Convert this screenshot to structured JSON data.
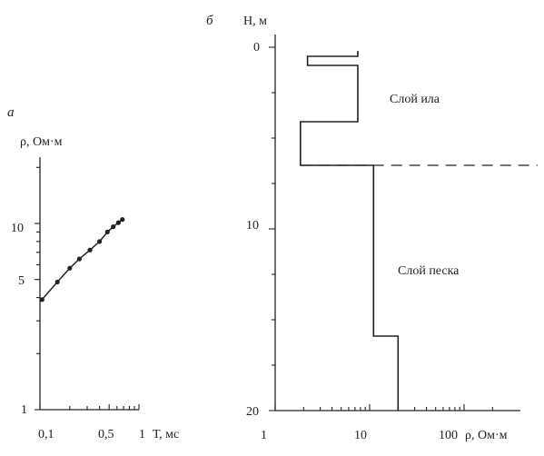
{
  "chart_data": [
    {
      "panel_label": "а",
      "type": "line",
      "ylabel": "ρ, Ом·м",
      "xlabel": "Т, мс",
      "x_scale": "log",
      "y_scale": "log",
      "xlim": [
        0.1,
        1
      ],
      "ylim": [
        1,
        20
      ],
      "x_tick_labels": [
        "0,1",
        "0,5",
        "1"
      ],
      "y_tick_labels": [
        "1",
        "5",
        "10"
      ],
      "series": [
        {
          "x": [
            0.105,
            0.15,
            0.2,
            0.25,
            0.32,
            0.4,
            0.48,
            0.55,
            0.62,
            0.68
          ],
          "y": [
            3.9,
            4.85,
            5.75,
            6.45,
            7.2,
            8.0,
            9.0,
            9.6,
            10.1,
            10.5
          ]
        }
      ]
    },
    {
      "panel_label": "б",
      "type": "line",
      "ylabel": "Н, м",
      "xlabel": "ρ, Ом·м",
      "x_scale": "log",
      "y_scale": "linear",
      "y_inverted": true,
      "xlim": [
        1,
        1000
      ],
      "ylim": [
        0,
        20
      ],
      "x_tick_labels": [
        "1",
        "10",
        "100"
      ],
      "y_tick_labels": [
        "0",
        "10",
        "20"
      ],
      "annotations": [
        "Слой ила",
        "Слой песка"
      ],
      "boundary_depth": 6.5,
      "series": [
        {
          "x": [
            7.5,
            7.5,
            2.2,
            2.2,
            7.5,
            7.5,
            2.6,
            2.6,
            1.85,
            1.85,
            11,
            11,
            20,
            20
          ],
          "y": [
            0.2,
            0.5,
            0.5,
            1.0,
            1.0,
            4.1,
            4.1,
            4.1,
            4.1,
            6.5,
            6.5,
            15.9,
            15.9,
            20
          ]
        }
      ]
    }
  ]
}
